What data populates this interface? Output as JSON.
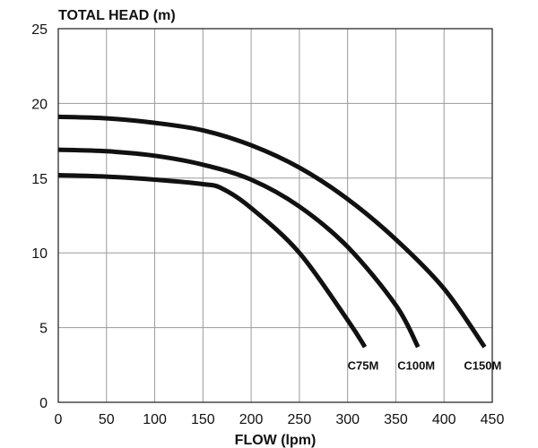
{
  "chart_data": {
    "type": "line",
    "title": "",
    "ylabel": "TOTAL HEAD (m)",
    "xlabel": "FLOW (lpm)",
    "xlim": [
      0,
      450
    ],
    "ylim": [
      0,
      25
    ],
    "xticks": [
      0,
      50,
      100,
      150,
      200,
      250,
      300,
      350,
      400,
      450
    ],
    "yticks": [
      0,
      5,
      10,
      15,
      20,
      25
    ],
    "grid": true,
    "legend": "inline labels at curve ends",
    "line_color": "#111111",
    "series": [
      {
        "name": "C75M",
        "x": [
          0,
          50,
          100,
          150,
          170,
          200,
          250,
          300,
          318
        ],
        "y": [
          15.2,
          15.1,
          14.9,
          14.6,
          14.3,
          13.0,
          10.0,
          5.5,
          3.7
        ]
      },
      {
        "name": "C100M",
        "x": [
          0,
          50,
          100,
          150,
          200,
          250,
          300,
          350,
          373
        ],
        "y": [
          16.9,
          16.8,
          16.5,
          15.9,
          14.9,
          13.1,
          10.4,
          6.5,
          3.7
        ]
      },
      {
        "name": "C150M",
        "x": [
          0,
          50,
          100,
          150,
          200,
          250,
          300,
          350,
          400,
          442
        ],
        "y": [
          19.1,
          19.0,
          18.7,
          18.2,
          17.2,
          15.7,
          13.6,
          10.9,
          7.6,
          3.7
        ]
      }
    ]
  }
}
